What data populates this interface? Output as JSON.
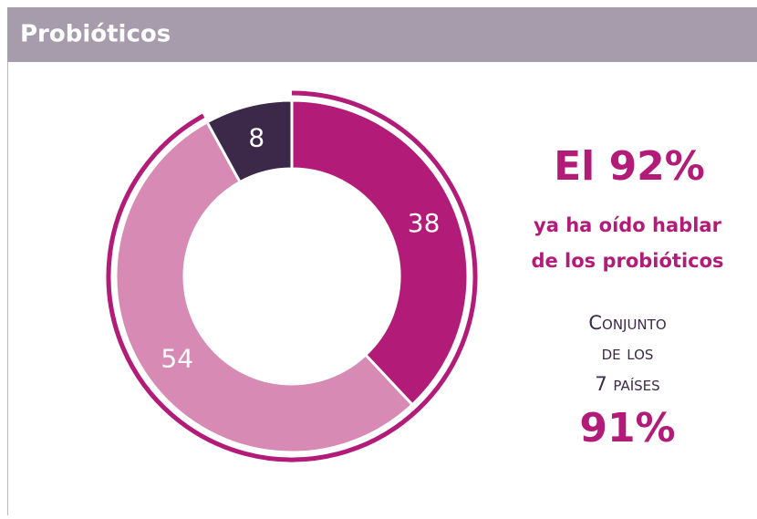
{
  "chart_data": {
    "type": "donut",
    "title": "Probióticos",
    "values": [
      38,
      54,
      8
    ],
    "colors": [
      "#b31b78",
      "#d68ab4",
      "#3c2848"
    ],
    "ring_color": "#b31b78",
    "annotations": {
      "headline": "El 92%",
      "line1": "ya ha oído  hablar",
      "line2": "de los probióticos",
      "group": [
        "Conjunto",
        "de los",
        "7 países"
      ],
      "group_value": "91%"
    }
  }
}
